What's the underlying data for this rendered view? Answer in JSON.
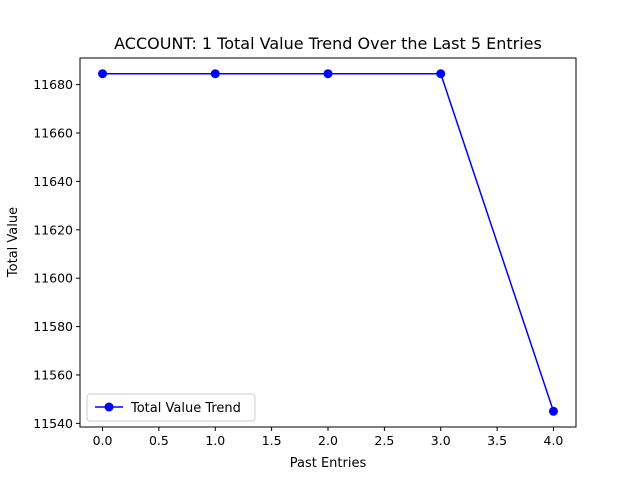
{
  "chart_data": {
    "type": "line",
    "title": "ACCOUNT: 1 Total Value Trend Over the Last 5 Entries",
    "xlabel": "Past Entries",
    "ylabel": "Total Value",
    "x": [
      0,
      1,
      2,
      3,
      4
    ],
    "series": [
      {
        "name": "Total Value Trend",
        "values": [
          11684.5,
          11684.5,
          11684.5,
          11684.5,
          11545
        ],
        "color": "#0000ff",
        "marker": "circle"
      }
    ],
    "xlim": [
      -0.2,
      4.2
    ],
    "ylim": [
      11538.5,
      11691
    ],
    "xticks": [
      "0.0",
      "0.5",
      "1.0",
      "1.5",
      "2.0",
      "2.5",
      "3.0",
      "3.5",
      "4.0"
    ],
    "xtick_values": [
      0,
      0.5,
      1,
      1.5,
      2,
      2.5,
      3,
      3.5,
      4
    ],
    "yticks": [
      "11540",
      "11560",
      "11580",
      "11600",
      "11620",
      "11640",
      "11660",
      "11680"
    ],
    "ytick_values": [
      11540,
      11560,
      11580,
      11600,
      11620,
      11640,
      11660,
      11680
    ],
    "grid": false,
    "legend_position": "lower-left"
  }
}
